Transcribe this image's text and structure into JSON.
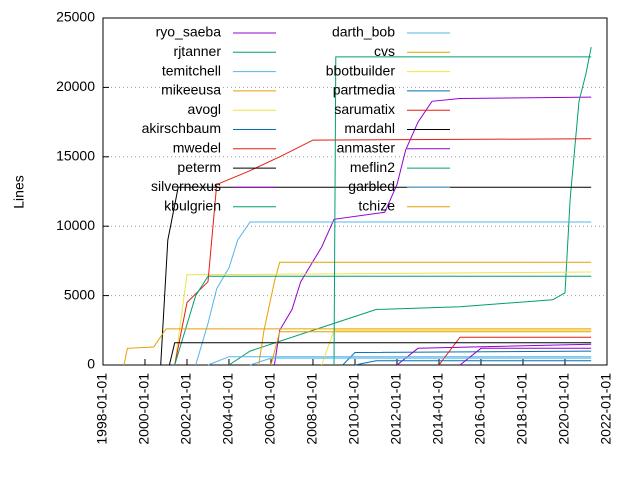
{
  "chart_data": {
    "type": "line",
    "y_label": "Lines",
    "xlim": [
      "1998-01-01",
      "2022-01-01"
    ],
    "xticks": [
      "1998-01-01",
      "2000-01-01",
      "2002-01-01",
      "2004-01-01",
      "2006-01-01",
      "2008-01-01",
      "2010-01-01",
      "2012-01-01",
      "2014-01-01",
      "2016-01-01",
      "2018-01-01",
      "2020-01-01",
      "2022-01-01"
    ],
    "ylim": [
      0,
      25000
    ],
    "yticks": [
      0,
      5000,
      10000,
      15000,
      20000,
      25000
    ],
    "grid": true,
    "legend": "top-left",
    "series": [
      {
        "name": "ryo_saeba",
        "color": "#9400d3",
        "x": [
          "2006-03-01",
          "2006-06-01",
          "2007-01-01",
          "2007-06-01",
          "2008-06-01",
          "2009-01-01",
          "2011-06-01",
          "2012-01-01",
          "2012-06-01",
          "2013-01-01",
          "2013-09-01",
          "2015-01-01",
          "2021-04-01"
        ],
        "values": [
          0,
          2500,
          4000,
          6000,
          8500,
          10500,
          11000,
          13000,
          15500,
          17500,
          19000,
          19200,
          19300
        ]
      },
      {
        "name": "rjtanner",
        "color": "#009e73",
        "x": [
          "2004-01-01",
          "2005-01-01",
          "2009-01-01",
          "2011-01-01",
          "2015-01-01",
          "2019-06-01",
          "2020-01-01",
          "2020-04-01",
          "2020-09-01",
          "2021-01-01",
          "2021-04-01"
        ],
        "values": [
          0,
          1000,
          3000,
          4000,
          4200,
          4700,
          5200,
          12000,
          19000,
          21000,
          22900
        ]
      },
      {
        "name": "temitchell",
        "color": "#56b4e9",
        "x": [
          "2002-06-01",
          "2003-01-01",
          "2003-06-01",
          "2004-01-01",
          "2004-06-01",
          "2005-01-01",
          "2021-04-01"
        ],
        "values": [
          0,
          3000,
          5500,
          7000,
          9000,
          10300,
          10300
        ]
      },
      {
        "name": "mikeeusa",
        "color": "#e69f00",
        "x": [
          "2005-06-01",
          "2005-09-01",
          "2006-03-01",
          "2006-06-01",
          "2021-04-01"
        ],
        "values": [
          0,
          2500,
          6000,
          7400,
          7400
        ]
      },
      {
        "name": "avogl",
        "color": "#f0e442",
        "x": [
          "2001-06-01",
          "2002-01-01",
          "2021-04-01"
        ],
        "values": [
          0,
          6500,
          6700
        ]
      },
      {
        "name": "akirschbaum",
        "color": "#0072b2",
        "x": [
          "2009-06-01",
          "2010-01-01",
          "2021-04-01"
        ],
        "values": [
          0,
          900,
          1000
        ]
      },
      {
        "name": "mwedel",
        "color": "#e51e10",
        "x": [
          "2001-06-01",
          "2002-01-01",
          "2003-01-01",
          "2003-06-01",
          "2005-01-01",
          "2006-06-01",
          "2008-01-01",
          "2021-04-01"
        ],
        "values": [
          0,
          4500,
          6000,
          13000,
          14000,
          15000,
          16200,
          16300
        ]
      },
      {
        "name": "peterm",
        "color": "#000000",
        "x": [
          "2000-10-01",
          "2001-02-01",
          "2001-08-01",
          "2021-04-01"
        ],
        "values": [
          0,
          9000,
          12800,
          12800
        ]
      },
      {
        "name": "silvernexus",
        "color": "#9400d3",
        "x": [
          "2012-01-01",
          "2013-01-01",
          "2021-04-01"
        ],
        "values": [
          0,
          1200,
          1500
        ]
      },
      {
        "name": "kbulgrien",
        "color": "#009e73",
        "x": [
          "2001-06-01",
          "2002-06-01",
          "2003-01-01",
          "2021-04-01"
        ],
        "values": [
          0,
          5000,
          6400,
          6400
        ]
      },
      {
        "name": "darth_bob",
        "color": "#56b4e9",
        "x": [
          "2003-01-01",
          "2004-01-01",
          "2021-04-01"
        ],
        "values": [
          0,
          600,
          600
        ]
      },
      {
        "name": "cvs",
        "color": "#e69f00",
        "x": [
          "1999-01-01",
          "1999-03-01",
          "2000-06-01",
          "2001-01-01",
          "2021-04-01"
        ],
        "values": [
          0,
          1200,
          1300,
          2600,
          2600
        ]
      },
      {
        "name": "bbotbuilder",
        "color": "#f0e442",
        "x": [
          "2008-06-01",
          "2009-01-01",
          "2021-04-01"
        ],
        "values": [
          0,
          2500,
          2500
        ]
      },
      {
        "name": "partmedia",
        "color": "#0072b2",
        "x": [
          "2010-01-01",
          "2011-01-01",
          "2021-04-01"
        ],
        "values": [
          0,
          300,
          300
        ]
      },
      {
        "name": "sarumatix",
        "color": "#e51e10",
        "x": [
          "2014-01-01",
          "2015-01-01",
          "2021-04-01"
        ],
        "values": [
          0,
          2000,
          2000
        ]
      },
      {
        "name": "mardahl",
        "color": "#000000",
        "x": [
          "2001-03-01",
          "2001-06-01",
          "2021-04-01"
        ],
        "values": [
          0,
          1600,
          1600
        ]
      },
      {
        "name": "anmaster",
        "color": "#9400d3",
        "x": [
          "2015-01-01",
          "2016-01-01",
          "2021-04-01"
        ],
        "values": [
          0,
          1200,
          1200
        ]
      },
      {
        "name": "meflin2",
        "color": "#009e73",
        "x": [
          "2009-01-01",
          "2009-02-01",
          "2021-04-01"
        ],
        "values": [
          0,
          22200,
          22200
        ]
      },
      {
        "name": "garbled",
        "color": "#56b4e9",
        "x": [
          "2005-01-01",
          "2006-01-01",
          "2021-04-01"
        ],
        "values": [
          0,
          500,
          500
        ]
      },
      {
        "name": "tchize",
        "color": "#e69f00",
        "x": [
          "2006-01-01",
          "2006-06-01",
          "2021-04-01"
        ],
        "values": [
          0,
          2400,
          2400
        ]
      }
    ]
  }
}
